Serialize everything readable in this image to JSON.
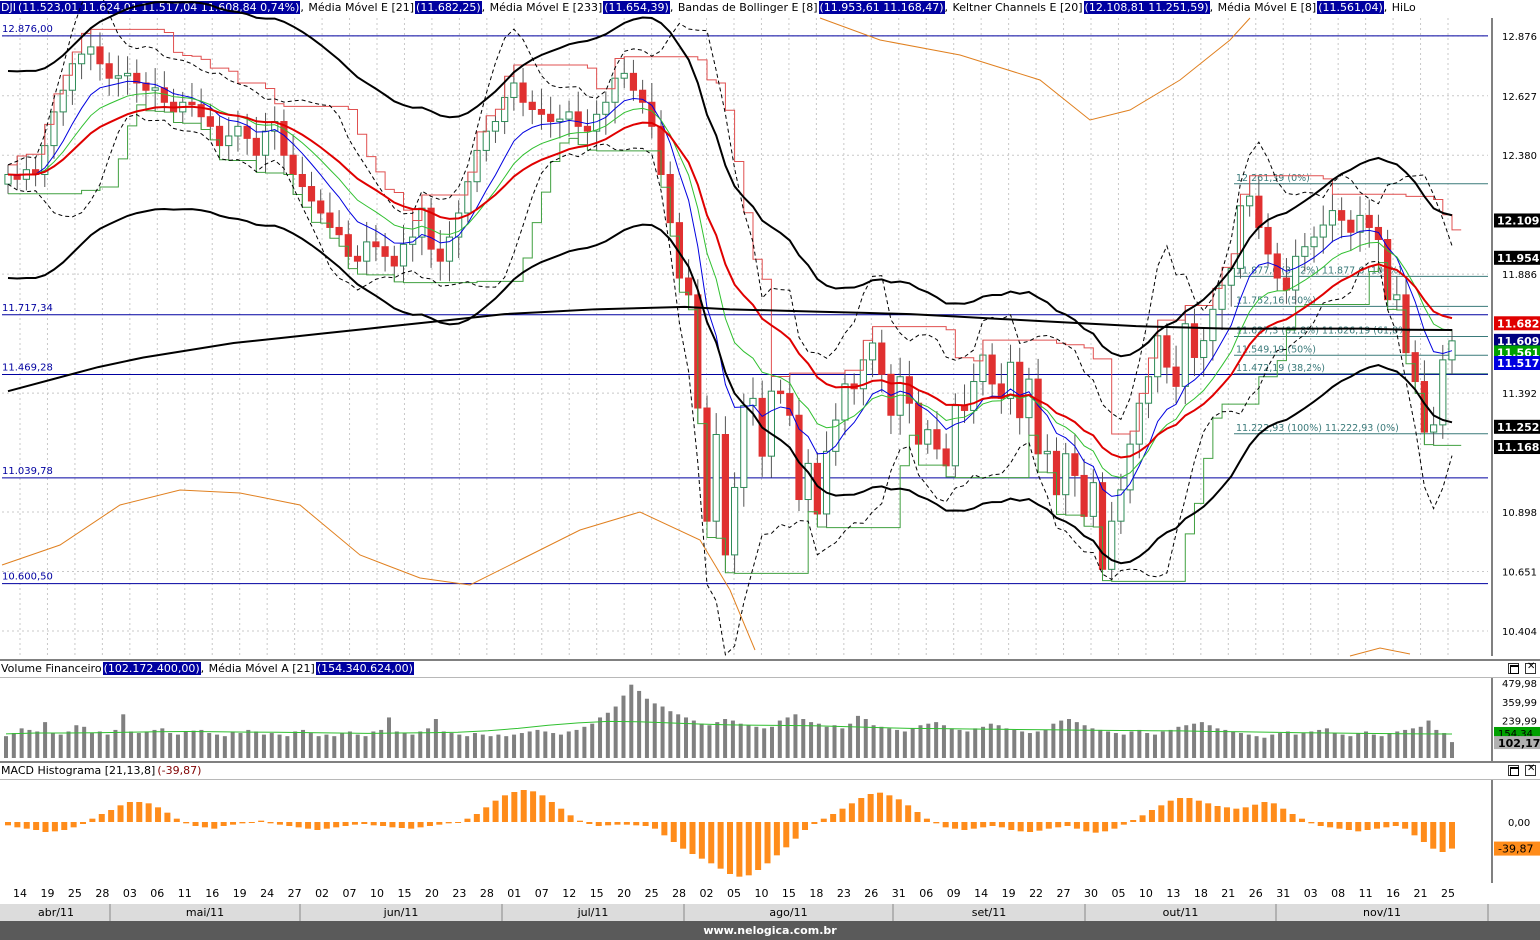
{
  "main_header": {
    "symbol": "DJI",
    "symbol_values": "(11.523,01  11.624,01  11.517,04  11.608,84  0,74%)",
    "ema21_label": "Média Móvel E [21]",
    "ema21_value": "(11.682,25)",
    "ema233_label": "Média Móvel E [233]",
    "ema233_value": "(11.654,39)",
    "bb_label": "Bandas de Bollinger E [8]",
    "bb_value": "(11.953,61  11.168,47)",
    "kc_label": "Keltner Channels E [20]",
    "kc_value": "(12.108,81  11.251,59)",
    "ema8_label": "Média Móvel E [8]",
    "ema8_value": "(11.561,04)",
    "hilo_label": "HiLo"
  },
  "volume_header": {
    "label": "Volume Financeiro",
    "value": "(102.172.400,00)",
    "ma_label": "Média Móvel A [21]",
    "ma_value": "(154.340.624,00)"
  },
  "macd_header": {
    "label": "MACD Histograma [21,13,8]",
    "value": "(-39,87)"
  },
  "footer": "www.nelogica.com.br",
  "colors": {
    "up": "#2e8b57",
    "down": "#e03030",
    "ema21": "#e00000",
    "ema8": "#0000e0",
    "ema233": "#000000",
    "keltner": "#000000",
    "bollinger": "#000000",
    "hilo_high": "#e05050",
    "hilo_low": "#40a040",
    "orange": "#e08020",
    "hline": "#0000a0",
    "volume_bar": "#808080",
    "macd": "#ff8c1a"
  },
  "chart_data": [
    {
      "type": "candlestick",
      "title": "DJI",
      "ylim": [
        10300,
        12950
      ],
      "y_ticks": [
        "12.876",
        "12.627",
        "12.380",
        "11.886",
        "11.392",
        "10.898",
        "10.651",
        "10.404"
      ],
      "price_badges": [
        {
          "value": 12109,
          "label": "12.109",
          "color": "#000000"
        },
        {
          "value": 11954,
          "label": "11.954",
          "color": "#000000"
        },
        {
          "value": 11682,
          "label": "11.682",
          "color": "#e00000"
        },
        {
          "value": 11609,
          "label": "11.609",
          "color": "#000080"
        },
        {
          "value": 11561,
          "label": "11.561",
          "color": "#00a000"
        },
        {
          "value": 11517,
          "label": "11.517",
          "color": "#0000e0"
        },
        {
          "value": 11252,
          "label": "11.252",
          "color": "#000000"
        },
        {
          "value": 11168,
          "label": "11.168",
          "color": "#000000"
        }
      ],
      "horizontal_lines": [
        {
          "value": 12876.0,
          "label": "12.876,00"
        },
        {
          "value": 11717.34,
          "label": "11.717,34"
        },
        {
          "value": 11469.28,
          "label": "11.469,28"
        },
        {
          "value": 11039.78,
          "label": "11.039,78"
        },
        {
          "value": 10600.5,
          "label": "10.600,50"
        }
      ],
      "fibonacci": [
        {
          "value": 12261.39,
          "label": "12.261,39 (0%)"
        },
        {
          "value": 11877,
          "label": "11.877,6 (38,2%) 11.877,6 (100%)"
        },
        {
          "value": 11752,
          "label": "11.752,16 (50%)"
        },
        {
          "value": 11627,
          "label": "11.627,3 (61,8%) 11.626,19 (61,8%)"
        },
        {
          "value": 11549.19,
          "label": "11.549,19 (50%)"
        },
        {
          "value": 11472.19,
          "label": "11.472,19 (38,2%)"
        },
        {
          "value": 11222.93,
          "label": "11.222,93 (100%) 11.222,93 (0%)"
        }
      ],
      "x_ticks": [
        "14",
        "19",
        "25",
        "28",
        "03",
        "06",
        "11",
        "16",
        "19",
        "24",
        "27",
        "02",
        "07",
        "10",
        "15",
        "20",
        "23",
        "28",
        "01",
        "07",
        "12",
        "15",
        "20",
        "25",
        "28",
        "02",
        "05",
        "10",
        "15",
        "18",
        "23",
        "26",
        "31",
        "06",
        "09",
        "14",
        "19",
        "22",
        "27",
        "30",
        "05",
        "10",
        "13",
        "18",
        "21",
        "26",
        "31",
        "03",
        "08",
        "11",
        "16",
        "21",
        "25"
      ],
      "months": [
        "abr/11",
        "mai/11",
        "jun/11",
        "jul/11",
        "ago/11",
        "set/11",
        "out/11",
        "nov/11"
      ],
      "close_path": [
        12300,
        12280,
        12320,
        12300,
        12420,
        12560,
        12650,
        12760,
        12800,
        12830,
        12760,
        12700,
        12710,
        12720,
        12680,
        12650,
        12660,
        12600,
        12560,
        12600,
        12590,
        12540,
        12500,
        12420,
        12460,
        12500,
        12450,
        12380,
        12480,
        12520,
        12380,
        12300,
        12250,
        12190,
        12140,
        12080,
        12050,
        11960,
        11940,
        12020,
        12000,
        11960,
        11920,
        12010,
        12040,
        12160,
        11990,
        11940,
        12040,
        12140,
        12270,
        12400,
        12480,
        12520,
        12620,
        12680,
        12600,
        12570,
        12550,
        12520,
        12530,
        12560,
        12500,
        12480,
        12550,
        12600,
        12700,
        12720,
        12650,
        12600,
        12500,
        12300,
        12100,
        11870,
        11800,
        11330,
        10860,
        11220,
        10720,
        11000,
        11340,
        11370,
        11130,
        11400,
        11390,
        11300,
        10950,
        11100,
        10890,
        11150,
        11280,
        11430,
        11410,
        11530,
        11600,
        11470,
        11300,
        11460,
        11350,
        11180,
        11240,
        11160,
        11090,
        11340,
        11320,
        11440,
        11550,
        11430,
        11370,
        11520,
        11290,
        11450,
        11140,
        11150,
        10970,
        11140,
        11050,
        10880,
        11020,
        10660,
        10860,
        10990,
        11180,
        11350,
        11460,
        11630,
        11500,
        11420,
        11680,
        11540,
        11610,
        11740,
        11840,
        11910,
        12170,
        12210,
        12080,
        11970,
        11870,
        11820,
        11960,
        12000,
        12040,
        12090,
        12150,
        12110,
        12060,
        12130,
        12080,
        12030,
        11780,
        11800,
        11560,
        11440,
        11230,
        11260,
        11530,
        11609
      ],
      "ema21_path": [
        12120,
        12130,
        12150,
        12180,
        12220,
        12260,
        12300,
        12330,
        12360,
        12370,
        12380,
        12380,
        12380,
        12380,
        12370,
        12360,
        12350,
        12340,
        12320,
        12300,
        12270,
        12230,
        12190,
        12150,
        12120,
        12100,
        12090,
        12090,
        12100,
        12120,
        12150,
        12200,
        12250,
        12300,
        12330,
        12350,
        12360,
        12330,
        12250,
        12100,
        11900,
        11700,
        11500,
        11380,
        11300,
        11260,
        11240,
        11230,
        11230,
        11240,
        11250,
        11280,
        11300,
        11310,
        11310,
        11300,
        11280,
        11270,
        11230,
        11180,
        11140,
        11120,
        11120,
        11160,
        11230,
        11300,
        11380,
        11450,
        11540,
        11620,
        11680,
        11700,
        11720,
        11730,
        11740,
        11682
      ],
      "ema233_path": [
        11400,
        11450,
        11500,
        11540,
        11570,
        11600,
        11620,
        11640,
        11660,
        11680,
        11700,
        11720,
        11730,
        11740,
        11745,
        11750,
        11740,
        11735,
        11730,
        11725,
        11720,
        11710,
        11700,
        11690,
        11680,
        11670,
        11665,
        11660,
        11660,
        11660,
        11660,
        11655,
        11654
      ],
      "volume": {
        "ylim": [
          0,
          500
        ],
        "ticks": [
          "479,98",
          "359,99",
          "239,99"
        ],
        "ma_badge": "154,34",
        "last_badge": "102,17",
        "bars": [
          140,
          160,
          190,
          180,
          170,
          230,
          160,
          150,
          170,
          210,
          200,
          160,
          170,
          150,
          180,
          280,
          170,
          160,
          170,
          180,
          190,
          160,
          150,
          170,
          175,
          180,
          160,
          150,
          140,
          170,
          160,
          180,
          170,
          150,
          160,
          150,
          140,
          170,
          180,
          160,
          140,
          150,
          140,
          160,
          170,
          150,
          140,
          170,
          180,
          260,
          170,
          160,
          150,
          170,
          190,
          250,
          170,
          160,
          150,
          140,
          160,
          150,
          140,
          150,
          140,
          150,
          160,
          170,
          180,
          170,
          160,
          150,
          170,
          180,
          200,
          220,
          260,
          290,
          330,
          400,
          470,
          430,
          380,
          350,
          330,
          300,
          280,
          260,
          240,
          220,
          210,
          230,
          250,
          240,
          220,
          210,
          200,
          190,
          200,
          240,
          260,
          280,
          250,
          230,
          220,
          200,
          210,
          190,
          220,
          270,
          250,
          210,
          200,
          190,
          180,
          170,
          190,
          210,
          220,
          230,
          210,
          190,
          180,
          170,
          190,
          200,
          220,
          210,
          190,
          180,
          170,
          160,
          170,
          180,
          220,
          240,
          250,
          230,
          210,
          190,
          180,
          170,
          160,
          150,
          170,
          180,
          160,
          150,
          170,
          180,
          200,
          210,
          220,
          230,
          210,
          190,
          180,
          170,
          160,
          150,
          140,
          130,
          150,
          160,
          170,
          150,
          160,
          170,
          180,
          190,
          160,
          150,
          140,
          160,
          170,
          150,
          140,
          160,
          170,
          180,
          190,
          200,
          240,
          180,
          160,
          102
        ],
        "ma_path": [
          155,
          160,
          160,
          162,
          165,
          168,
          170,
          168,
          166,
          165,
          163,
          160,
          158,
          160,
          162,
          165,
          175,
          190,
          210,
          225,
          235,
          232,
          225,
          218,
          212,
          210,
          208,
          206,
          200,
          195,
          190,
          188,
          186,
          184,
          182,
          180,
          178,
          176,
          175,
          174,
          170,
          168,
          165,
          162,
          160,
          158,
          156,
          155,
          154
        ]
      },
      "macd": {
        "ylim": [
          -90,
          60
        ],
        "zero_label": "0,00",
        "last_badge": "-39,87",
        "bars": [
          -5,
          -8,
          -10,
          -12,
          -15,
          -14,
          -12,
          -8,
          -3,
          5,
          12,
          18,
          25,
          30,
          30,
          28,
          22,
          14,
          5,
          -2,
          -6,
          -8,
          -10,
          -6,
          -4,
          -2,
          0,
          2,
          -2,
          -4,
          -6,
          -8,
          -10,
          -12,
          -10,
          -8,
          -6,
          -4,
          -3,
          -5,
          -6,
          -8,
          -9,
          -10,
          -8,
          -6,
          -4,
          -2,
          0,
          5,
          12,
          22,
          32,
          40,
          45,
          48,
          46,
          40,
          30,
          20,
          10,
          2,
          -3,
          -6,
          -5,
          -4,
          -4,
          -5,
          -6,
          -10,
          -20,
          -30,
          -40,
          -48,
          -55,
          -62,
          -70,
          -78,
          -82,
          -80,
          -72,
          -62,
          -50,
          -38,
          -25,
          -12,
          -3,
          5,
          12,
          20,
          28,
          36,
          42,
          44,
          40,
          34,
          25,
          15,
          5,
          -2,
          -8,
          -10,
          -12,
          -10,
          -8,
          -6,
          -8,
          -12,
          -14,
          -15,
          -13,
          -10,
          -8,
          -6,
          -10,
          -14,
          -16,
          -14,
          -10,
          -4,
          3,
          10,
          18,
          25,
          32,
          36,
          36,
          32,
          28,
          24,
          22,
          20,
          22,
          26,
          30,
          28,
          20,
          12,
          5,
          -2,
          -6,
          -8,
          -10,
          -12,
          -14,
          -12,
          -10,
          -8,
          -6,
          -10,
          -20,
          -30,
          -40,
          -45,
          -39.87
        ]
      }
    }
  ]
}
